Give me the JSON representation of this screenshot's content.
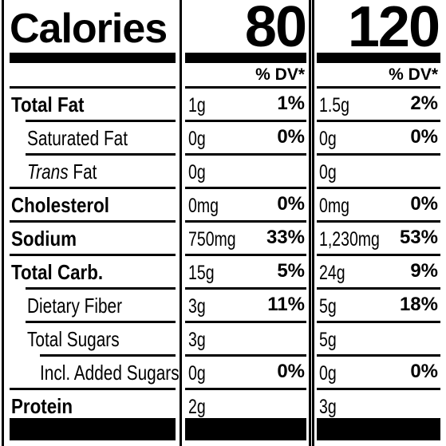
{
  "calories_label": "Calories",
  "columns": [
    {
      "calories": "80",
      "dv_header": "% DV*"
    },
    {
      "calories": "120",
      "dv_header": "% DV*"
    }
  ],
  "nutrients": [
    {
      "name": "Total Fat",
      "italic_prefix": "",
      "bold": true,
      "indent": 0,
      "values": [
        {
          "amount": "1g",
          "dv": "1%"
        },
        {
          "amount": "1.5g",
          "dv": "2%"
        }
      ]
    },
    {
      "name": "Saturated Fat",
      "italic_prefix": "",
      "bold": false,
      "indent": 1,
      "values": [
        {
          "amount": "0g",
          "dv": "0%"
        },
        {
          "amount": "0g",
          "dv": "0%"
        }
      ]
    },
    {
      "name": " Fat",
      "italic_prefix": "Trans",
      "bold": false,
      "indent": 1,
      "values": [
        {
          "amount": "0g",
          "dv": ""
        },
        {
          "amount": "0g",
          "dv": ""
        }
      ]
    },
    {
      "name": "Cholesterol",
      "italic_prefix": "",
      "bold": true,
      "indent": 0,
      "values": [
        {
          "amount": "0mg",
          "dv": "0%"
        },
        {
          "amount": "0mg",
          "dv": "0%"
        }
      ]
    },
    {
      "name": "Sodium",
      "italic_prefix": "",
      "bold": true,
      "indent": 0,
      "values": [
        {
          "amount": "750mg",
          "dv": "33%"
        },
        {
          "amount": "1,230mg",
          "dv": "53%"
        }
      ]
    },
    {
      "name": "Total Carb.",
      "italic_prefix": "",
      "bold": true,
      "indent": 0,
      "values": [
        {
          "amount": "15g",
          "dv": "5%"
        },
        {
          "amount": "24g",
          "dv": "9%"
        }
      ]
    },
    {
      "name": "Dietary Fiber",
      "italic_prefix": "",
      "bold": false,
      "indent": 1,
      "values": [
        {
          "amount": "3g",
          "dv": "11%"
        },
        {
          "amount": "5g",
          "dv": "18%"
        }
      ]
    },
    {
      "name": "Total Sugars",
      "italic_prefix": "",
      "bold": false,
      "indent": 1,
      "values": [
        {
          "amount": "3g",
          "dv": ""
        },
        {
          "amount": "5g",
          "dv": ""
        }
      ]
    },
    {
      "name": "Incl. Added Sugars",
      "italic_prefix": "",
      "bold": false,
      "indent": 2,
      "values": [
        {
          "amount": "0g",
          "dv": "0%"
        },
        {
          "amount": "0g",
          "dv": "0%"
        }
      ]
    },
    {
      "name": "Protein",
      "italic_prefix": "",
      "bold": true,
      "indent": 0,
      "values": [
        {
          "amount": "2g",
          "dv": ""
        },
        {
          "amount": "3g",
          "dv": ""
        }
      ]
    }
  ]
}
